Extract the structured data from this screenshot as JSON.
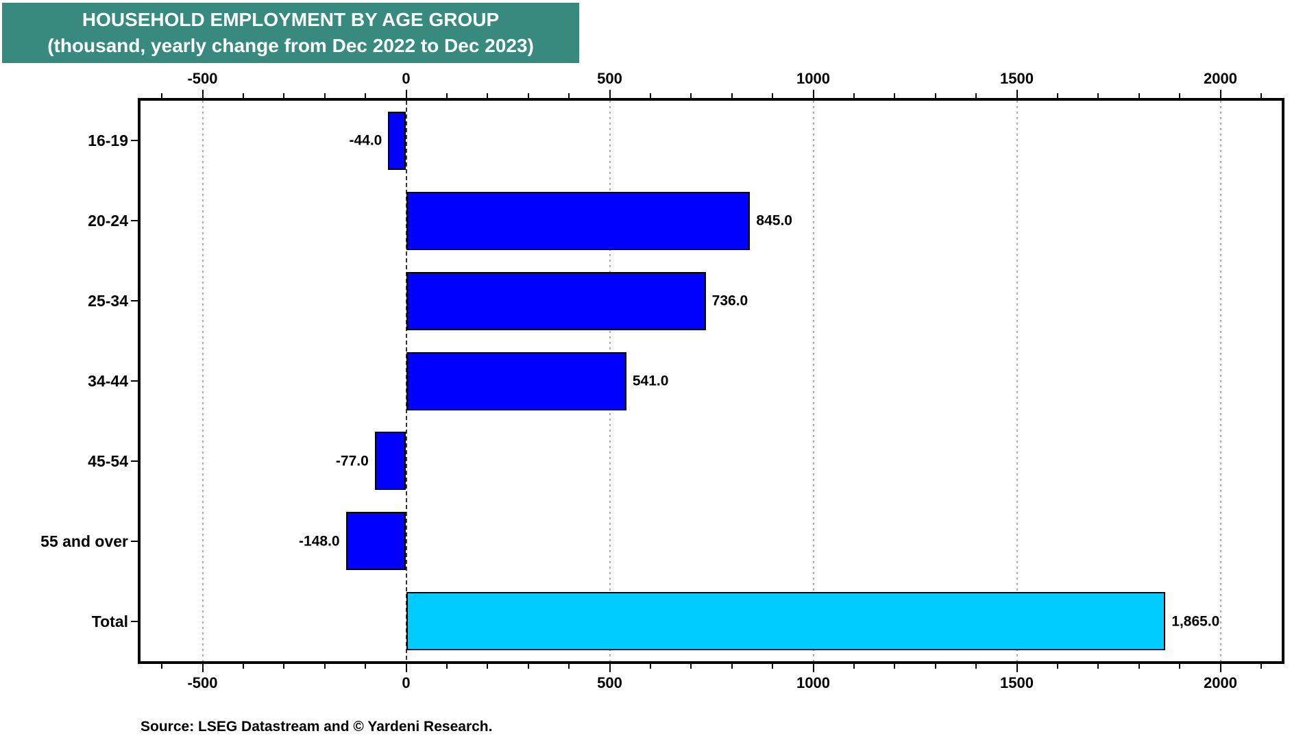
{
  "chart_data": {
    "type": "bar",
    "orientation": "horizontal",
    "title": "HOUSEHOLD EMPLOYMENT BY AGE GROUP",
    "subtitle": "(thousand, yearly change from Dec 2022 to Dec 2023)",
    "categories": [
      "16-19",
      "20-24",
      "25-34",
      "34-44",
      "45-54",
      "55 and over",
      "Total"
    ],
    "values": [
      -44.0,
      845.0,
      736.0,
      541.0,
      -77.0,
      -148.0,
      1865.0
    ],
    "value_labels": [
      "-44.0",
      "845.0",
      "736.0",
      "541.0",
      "-77.0",
      "-148.0",
      "1,865.0"
    ],
    "xlim": [
      -655,
      2155
    ],
    "x_major_ticks": [
      -500,
      0,
      500,
      1000,
      1500,
      2000
    ],
    "x_major_tick_labels": [
      "-500",
      "0",
      "500",
      "1000",
      "1500",
      "2000"
    ],
    "x_minor_tick_step": 100,
    "grid": "vertical dotted gridlines at major ticks, fine dashed line at zero",
    "legend_position": "none",
    "axis_labels_position": "top and bottom",
    "colors": {
      "bar": "#0000FF",
      "total_bar": "#00CCFF",
      "bar_border": "#000000",
      "grid_line": "#ABABAB",
      "zero_line": "#333333",
      "axis": "#000000",
      "label_text": "#000000",
      "banner_bg": "#398A7E",
      "banner_text": "#FFFFFF"
    },
    "source": "Source: LSEG Datastream and © Yardeni Research."
  }
}
